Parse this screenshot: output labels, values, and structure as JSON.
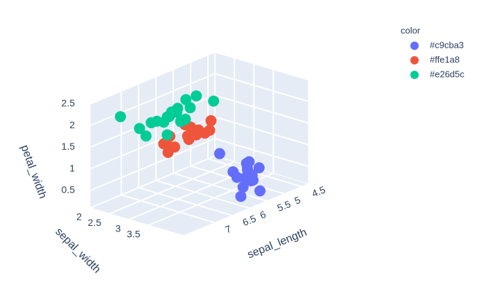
{
  "chart_data": {
    "type": "scatter3d",
    "legend_title": "color",
    "xlabel": "sepal_length",
    "ylabel": "sepal_width",
    "zlabel": "petal_width",
    "xlim": [
      4.3,
      7.9
    ],
    "ylim": [
      2,
      4.4
    ],
    "zlim": [
      0.1,
      2.5
    ],
    "xticks": [
      4.5,
      5,
      5.5,
      6,
      6.5,
      7
    ],
    "yticks": [
      2,
      2.5,
      3,
      3.5
    ],
    "zticks": [
      0.5,
      1,
      1.5,
      2,
      2.5
    ],
    "grid": true,
    "legend_position": "top-right",
    "series": [
      {
        "name": "#c9cba3",
        "color": "#636efa",
        "x": [
          5.1,
          4.9,
          4.7,
          4.6,
          5.0,
          5.4,
          4.6,
          5.0,
          4.4,
          4.9,
          5.4,
          4.8,
          5.8,
          5.7,
          4.5,
          5.0
        ],
        "y": [
          3.5,
          3.0,
          3.2,
          3.1,
          3.6,
          3.9,
          3.4,
          3.4,
          2.9,
          3.1,
          3.7,
          3.4,
          4.0,
          4.4,
          2.3,
          3.5
        ],
        "z": [
          0.2,
          0.2,
          0.2,
          0.2,
          0.2,
          0.4,
          0.3,
          0.2,
          0.2,
          0.1,
          0.2,
          0.2,
          0.2,
          0.4,
          0.3,
          0.6
        ]
      },
      {
        "name": "#ffe1a8",
        "color": "#ef553b",
        "x": [
          7.0,
          6.4,
          6.9,
          5.5,
          6.5,
          5.7,
          6.3,
          4.9,
          6.6,
          5.2,
          5.0,
          5.9,
          6.0,
          6.1,
          5.6,
          6.7
        ],
        "y": [
          3.2,
          3.2,
          3.1,
          2.3,
          2.8,
          2.8,
          3.3,
          2.4,
          2.9,
          2.7,
          2.0,
          3.0,
          2.2,
          2.9,
          2.9,
          3.1
        ],
        "z": [
          1.4,
          1.5,
          1.5,
          1.3,
          1.5,
          1.3,
          1.6,
          1.0,
          1.3,
          1.4,
          1.0,
          1.5,
          1.0,
          1.4,
          1.3,
          1.4
        ]
      },
      {
        "name": "#e26d5c",
        "color": "#00cc96",
        "x": [
          6.3,
          5.8,
          7.1,
          6.3,
          6.5,
          7.6,
          4.9,
          7.3,
          6.7,
          7.2,
          6.5,
          6.4,
          6.8,
          5.7,
          7.7,
          7.7,
          6.0,
          6.9
        ],
        "y": [
          3.3,
          2.7,
          3.0,
          2.9,
          3.0,
          3.0,
          2.5,
          2.9,
          2.5,
          3.6,
          3.2,
          2.7,
          3.0,
          2.5,
          3.8,
          2.6,
          2.2,
          3.2
        ],
        "z": [
          2.5,
          1.9,
          2.1,
          1.8,
          2.2,
          2.1,
          1.7,
          1.8,
          1.8,
          2.5,
          2.0,
          1.9,
          2.1,
          2.0,
          2.2,
          2.3,
          1.5,
          2.3
        ]
      }
    ]
  }
}
